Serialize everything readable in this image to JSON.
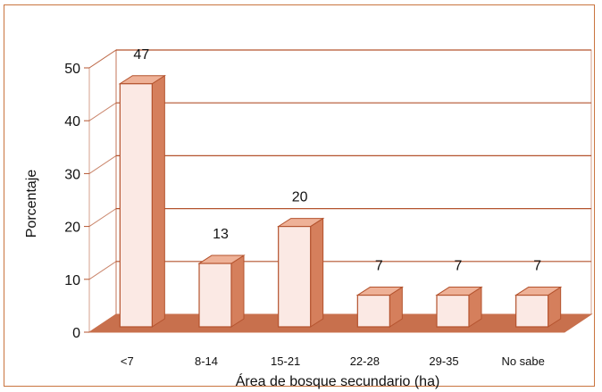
{
  "chart_data": {
    "type": "bar",
    "categories": [
      "<7",
      "8-14",
      "15-21",
      "22-28",
      "29-35",
      "No sabe"
    ],
    "values": [
      47,
      13,
      20,
      7,
      7,
      7
    ],
    "data_labels": [
      "47",
      "13",
      "20",
      "7",
      "7",
      "7"
    ],
    "xlabel": "Área de bosque secundario (ha)",
    "ylabel": "Porcentaje",
    "ylim": [
      0,
      50
    ],
    "yticks": [
      "0",
      "10",
      "20",
      "30",
      "40",
      "50"
    ],
    "grid": true,
    "style": "3d",
    "colors": {
      "bar_front": "#fbe9e4",
      "bar_side": "#d57f5c",
      "bar_top": "#eeb197",
      "bar_stroke": "#b4532e",
      "gridline": "#b4532e",
      "floor": "#c8704d",
      "frame": "#c9743f"
    }
  }
}
